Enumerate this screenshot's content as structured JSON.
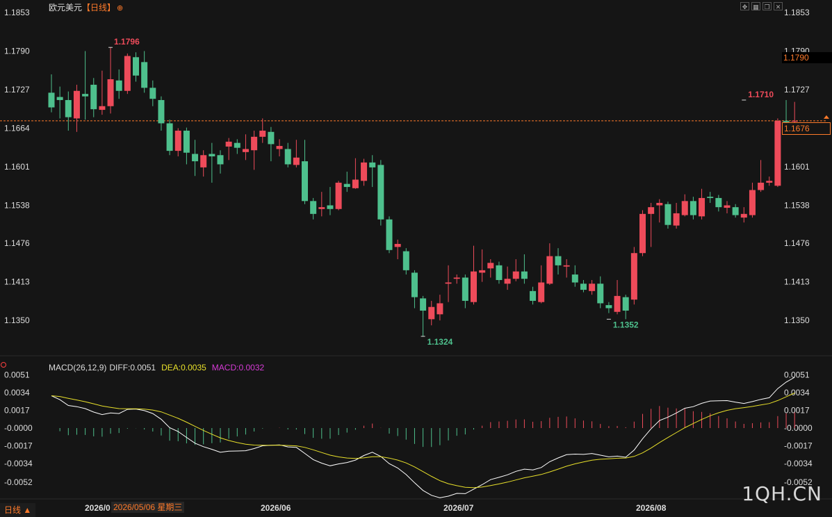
{
  "header": {
    "symbol": "欧元美元",
    "period_label": "【日线】",
    "icon": "add-circle-icon"
  },
  "window_buttons": [
    "move-icon",
    "grid-icon",
    "restore-icon",
    "close-icon"
  ],
  "main_axis": {
    "ticks": [
      "1.1853",
      "1.1790",
      "1.1727",
      "1.1664",
      "1.1601",
      "1.1538",
      "1.1476",
      "1.1413",
      "1.1350"
    ],
    "high_tag": "1.1790",
    "current_tag": "1.1676"
  },
  "annotations": {
    "high": "1.1796",
    "low1": "1.1324",
    "low2": "1.1352",
    "last_high": "1.1710"
  },
  "macd": {
    "name": "MACD(26,12,9)",
    "diff": "DIFF:0.0051",
    "dea": "DEA:0.0035",
    "macd": "MACD:0.0032",
    "ticks": [
      "0.0051",
      "0.0034",
      "0.0017",
      "-0.0000",
      "-0.0017",
      "-0.0034",
      "-0.0052"
    ],
    "colors": {
      "diff": "#ffffff",
      "dea": "#e8e02a",
      "macd": "#d63bd6"
    }
  },
  "x_axis": {
    "labels": [
      "2026/0",
      "2026/06",
      "2026/07",
      "2026/08"
    ],
    "cursor_date": "2026/05/06 星期三"
  },
  "footer": {
    "period_tab": "日线 ▲"
  },
  "watermark": "1QH.CN",
  "colors": {
    "up": "#ee4b5a",
    "down": "#4ec08d",
    "accent": "#ff7a2a"
  },
  "chart_data": {
    "type": "candlestick",
    "ylim": [
      1.13,
      1.186
    ],
    "candles": [
      [
        1.1722,
        1.1698,
        1.1752,
        1.169
      ],
      [
        1.1715,
        1.171,
        1.1732,
        1.168
      ],
      [
        1.171,
        1.1682,
        1.1724,
        1.166
      ],
      [
        1.168,
        1.1725,
        1.1735,
        1.1658
      ],
      [
        1.172,
        1.1716,
        1.179,
        1.1678
      ],
      [
        1.1735,
        1.1695,
        1.1746,
        1.1682
      ],
      [
        1.1694,
        1.17,
        1.1758,
        1.1686
      ],
      [
        1.17,
        1.1744,
        1.1796,
        1.1688
      ],
      [
        1.1742,
        1.1725,
        1.176,
        1.1712
      ],
      [
        1.1725,
        1.1782,
        1.1786,
        1.172
      ],
      [
        1.178,
        1.175,
        1.1788,
        1.174
      ],
      [
        1.1772,
        1.173,
        1.179,
        1.1722
      ],
      [
        1.173,
        1.1712,
        1.1742,
        1.17
      ],
      [
        1.171,
        1.1672,
        1.1716,
        1.166
      ],
      [
        1.1672,
        1.1627,
        1.1678,
        1.162
      ],
      [
        1.1627,
        1.166,
        1.1664,
        1.1618
      ],
      [
        1.166,
        1.1624,
        1.1665,
        1.1605
      ],
      [
        1.1622,
        1.161,
        1.1645,
        1.1586
      ],
      [
        1.16,
        1.162,
        1.1628,
        1.1585
      ],
      [
        1.1622,
        1.1618,
        1.164,
        1.1575
      ],
      [
        1.162,
        1.1605,
        1.1628,
        1.159
      ],
      [
        1.1634,
        1.1642,
        1.1648,
        1.1612
      ],
      [
        1.164,
        1.1632,
        1.1646,
        1.1622
      ],
      [
        1.1625,
        1.163,
        1.1654,
        1.1612
      ],
      [
        1.1628,
        1.165,
        1.166,
        1.1596
      ],
      [
        1.165,
        1.166,
        1.168,
        1.164
      ],
      [
        1.1658,
        1.1638,
        1.1666,
        1.161
      ],
      [
        1.163,
        1.1635,
        1.1646,
        1.1618
      ],
      [
        1.163,
        1.1605,
        1.164,
        1.16
      ],
      [
        1.1604,
        1.1616,
        1.1645,
        1.16
      ],
      [
        1.161,
        1.1545,
        1.1645,
        1.154
      ],
      [
        1.1545,
        1.1524,
        1.155,
        1.1515
      ],
      [
        1.1532,
        1.1535,
        1.156,
        1.152
      ],
      [
        1.1538,
        1.1532,
        1.1568,
        1.1522
      ],
      [
        1.1532,
        1.1575,
        1.1578,
        1.153
      ],
      [
        1.1573,
        1.1568,
        1.1593,
        1.156
      ],
      [
        1.1566,
        1.158,
        1.1615,
        1.1565
      ],
      [
        1.1578,
        1.1608,
        1.1614,
        1.157
      ],
      [
        1.1608,
        1.16,
        1.162,
        1.1568
      ],
      [
        1.1604,
        1.1515,
        1.1612,
        1.1505
      ],
      [
        1.1515,
        1.1465,
        1.152,
        1.146
      ],
      [
        1.147,
        1.1475,
        1.1482,
        1.145
      ],
      [
        1.1463,
        1.1432,
        1.1468,
        1.1425
      ],
      [
        1.1428,
        1.1388,
        1.1432,
        1.137
      ],
      [
        1.1386,
        1.1366,
        1.139,
        1.1324
      ],
      [
        1.1352,
        1.1372,
        1.1382,
        1.1342
      ],
      [
        1.136,
        1.1378,
        1.1392,
        1.135
      ],
      [
        1.141,
        1.1412,
        1.144,
        1.138
      ],
      [
        1.1418,
        1.142,
        1.1425,
        1.141
      ],
      [
        1.142,
        1.1382,
        1.1425,
        1.137
      ],
      [
        1.138,
        1.143,
        1.1472,
        1.1376
      ],
      [
        1.1428,
        1.1432,
        1.1466,
        1.1413
      ],
      [
        1.1435,
        1.1444,
        1.145,
        1.142
      ],
      [
        1.144,
        1.1416,
        1.1446,
        1.141
      ],
      [
        1.141,
        1.1418,
        1.1438,
        1.14
      ],
      [
        1.1418,
        1.143,
        1.145,
        1.1414
      ],
      [
        1.143,
        1.1418,
        1.1458,
        1.141
      ],
      [
        1.1398,
        1.1382,
        1.1405,
        1.1376
      ],
      [
        1.138,
        1.1412,
        1.144,
        1.1378
      ],
      [
        1.141,
        1.1455,
        1.1476,
        1.1408
      ],
      [
        1.1455,
        1.144,
        1.1468,
        1.1425
      ],
      [
        1.1438,
        1.144,
        1.145,
        1.142
      ],
      [
        1.1425,
        1.1412,
        1.144,
        1.1405
      ],
      [
        1.141,
        1.14,
        1.1416,
        1.1396
      ],
      [
        1.1398,
        1.141,
        1.1416,
        1.1392
      ],
      [
        1.141,
        1.1378,
        1.1422,
        1.137
      ],
      [
        1.1375,
        1.137,
        1.138,
        1.1362
      ],
      [
        1.1364,
        1.139,
        1.1416,
        1.136
      ],
      [
        1.1388,
        1.1366,
        1.1392,
        1.1352
      ],
      [
        1.1384,
        1.146,
        1.147,
        1.1376
      ],
      [
        1.146,
        1.1524,
        1.153,
        1.1455
      ],
      [
        1.1524,
        1.1535,
        1.1542,
        1.147
      ],
      [
        1.1538,
        1.1542,
        1.1548,
        1.151
      ],
      [
        1.154,
        1.1506,
        1.1544,
        1.15
      ],
      [
        1.1505,
        1.1525,
        1.1542,
        1.15
      ],
      [
        1.1522,
        1.1545,
        1.1556,
        1.152
      ],
      [
        1.1545,
        1.1522,
        1.1552,
        1.1515
      ],
      [
        1.152,
        1.155,
        1.1565,
        1.1515
      ],
      [
        1.1552,
        1.155,
        1.156,
        1.1542
      ],
      [
        1.155,
        1.1535,
        1.1555,
        1.1528
      ],
      [
        1.1534,
        1.1538,
        1.1545,
        1.1525
      ],
      [
        1.1535,
        1.1522,
        1.154,
        1.1518
      ],
      [
        1.1518,
        1.1524,
        1.1535,
        1.151
      ],
      [
        1.1522,
        1.1563,
        1.1575,
        1.1518
      ],
      [
        1.1563,
        1.1575,
        1.1612,
        1.156
      ],
      [
        1.1575,
        1.1578,
        1.1585,
        1.157
      ],
      [
        1.157,
        1.1676,
        1.168,
        1.1568
      ],
      [
        1.1676,
        1.1674,
        1.171,
        1.1668
      ],
      [
        1.1676,
        1.1676,
        1.1707,
        1.1672
      ]
    ]
  }
}
